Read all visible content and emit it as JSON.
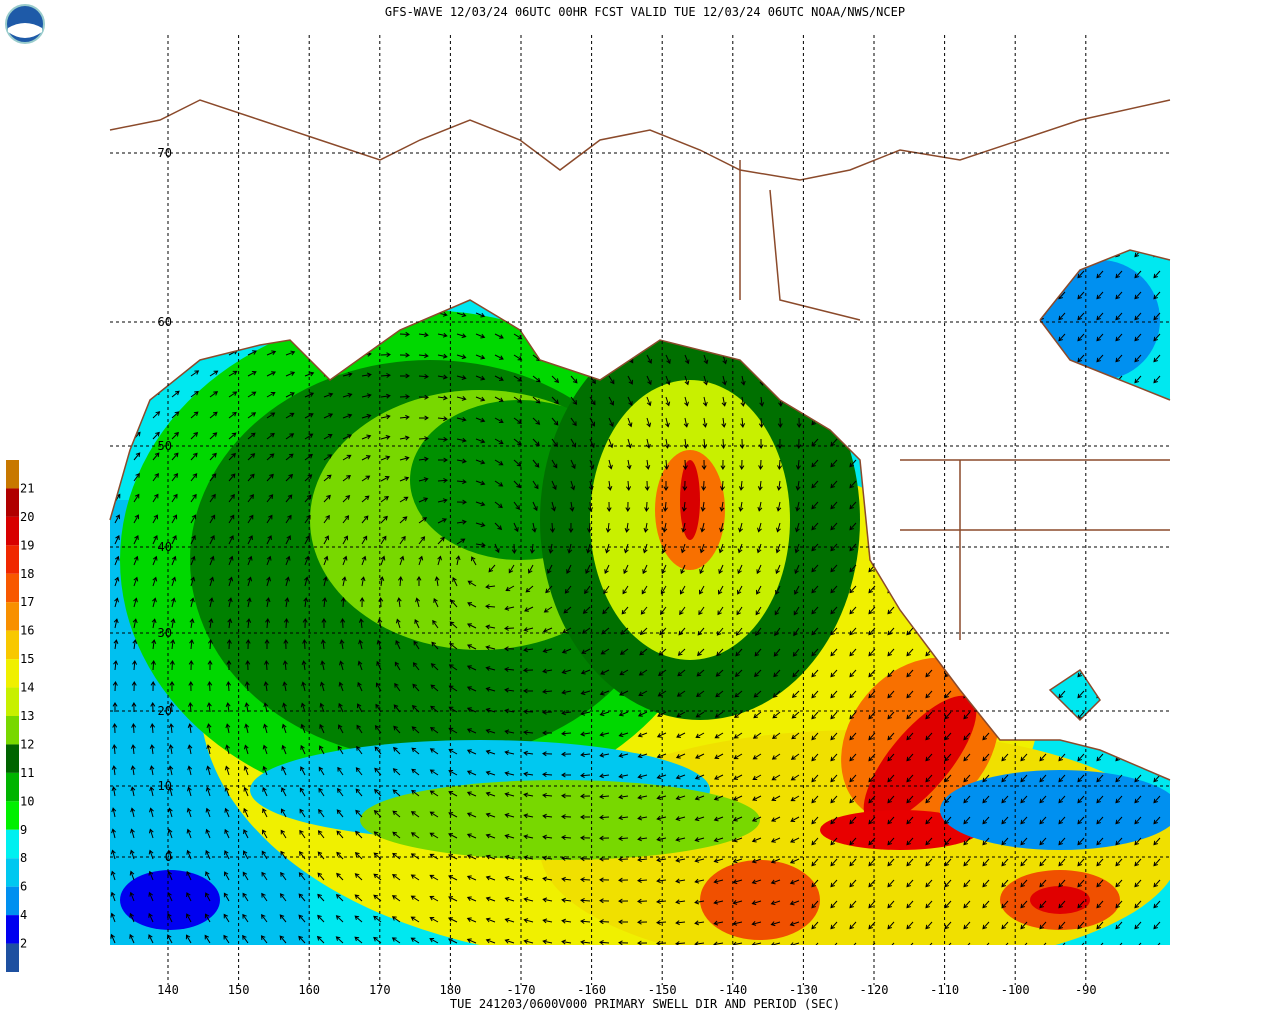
{
  "header": {
    "title": "GFS-WAVE 12/03/24 06UTC 00HR FCST VALID TUE 12/03/24 06UTC NOAA/NWS/NCEP"
  },
  "footer": "TUE 241203/0600V000 PRIMARY SWELL DIR AND PERIOD (SEC)",
  "longitudes": [
    "140",
    "150",
    "160",
    "170",
    "180",
    "-170",
    "-160",
    "-150",
    "-140",
    "-130",
    "-120",
    "-110",
    "-100",
    "-90"
  ],
  "latitudes": [
    "70",
    "60",
    "50",
    "40",
    "30",
    "20",
    "10",
    "0"
  ],
  "colorbar": {
    "labels": [
      "21",
      "20",
      "19",
      "18",
      "17",
      "16",
      "15",
      "14",
      "13",
      "12",
      "11",
      "10",
      "9",
      "8",
      "6",
      "4",
      "2"
    ],
    "colors": [
      "#c87800",
      "#b00000",
      "#d80000",
      "#f02800",
      "#f85800",
      "#f89000",
      "#f8c800",
      "#f0f000",
      "#c8f000",
      "#78d800",
      "#006400",
      "#00b400",
      "#00f000",
      "#00f0f0",
      "#00c8f0",
      "#0090f0",
      "#0000f0",
      "#1e50a0"
    ]
  }
}
